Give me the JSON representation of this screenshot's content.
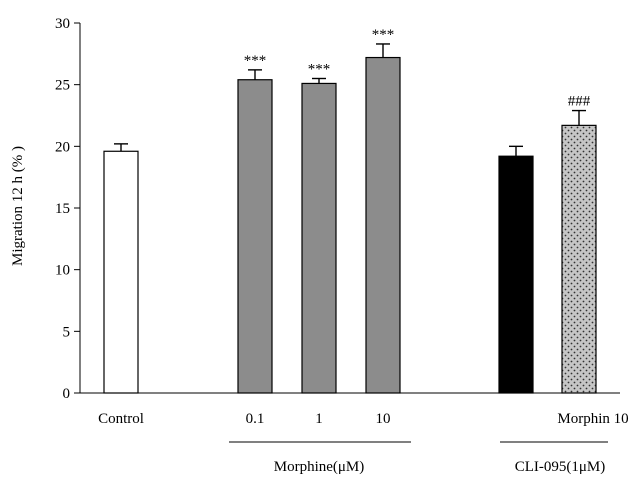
{
  "chart_data": {
    "type": "bar",
    "xlabel": "",
    "ylabel": "Migration 12 h (% )",
    "ylim": [
      0,
      30
    ],
    "yticks": [
      0,
      5,
      10,
      15,
      20,
      25,
      30
    ],
    "bars": [
      {
        "label": "Control",
        "value": 19.6,
        "error": 0.6,
        "fill": "white",
        "significance": ""
      },
      {
        "label": "0.1",
        "value": 25.4,
        "error": 0.8,
        "fill": "gray",
        "significance": "***"
      },
      {
        "label": "1",
        "value": 25.1,
        "error": 0.4,
        "fill": "gray",
        "significance": "***"
      },
      {
        "label": "10",
        "value": 27.2,
        "error": 1.1,
        "fill": "gray",
        "significance": "***"
      },
      {
        "label": "",
        "value": 19.2,
        "error": 0.8,
        "fill": "black",
        "significance": ""
      },
      {
        "label": "Morphin 10",
        "value": 21.7,
        "error": 1.2,
        "fill": "dotted",
        "significance": "###"
      }
    ],
    "groups": [
      {
        "label": "Morphine(μM)"
      },
      {
        "label": "CLI-095(1μM)"
      }
    ]
  },
  "colors": {
    "gray_bar": "#8c8c8c",
    "black_bar": "#000000",
    "white_bar": "#ffffff",
    "dotted_bar_bg": "#c6c6c6"
  }
}
